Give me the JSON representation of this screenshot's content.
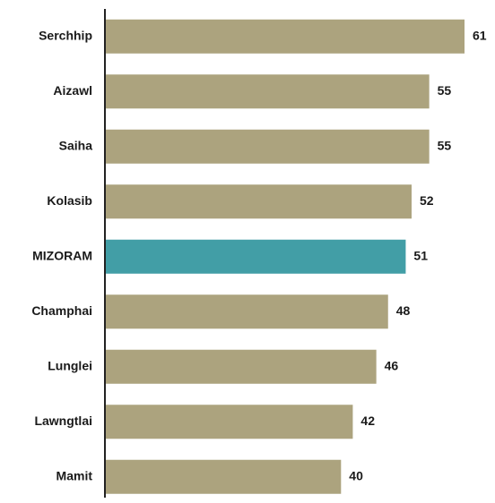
{
  "chart_data": {
    "type": "barh",
    "categories": [
      "Serchhip",
      "Aizawl",
      "Saiha",
      "Kolasib",
      "MIZORAM",
      "Champhai",
      "Lunglei",
      "Lawngtlai",
      "Mamit"
    ],
    "values": [
      61,
      55,
      55,
      52,
      51,
      48,
      46,
      42,
      40
    ],
    "colors": [
      "#aca37e",
      "#aca37e",
      "#aca37e",
      "#aca37e",
      "#429ea6",
      "#aca37e",
      "#aca37e",
      "#aca37e",
      "#aca37e"
    ]
  }
}
